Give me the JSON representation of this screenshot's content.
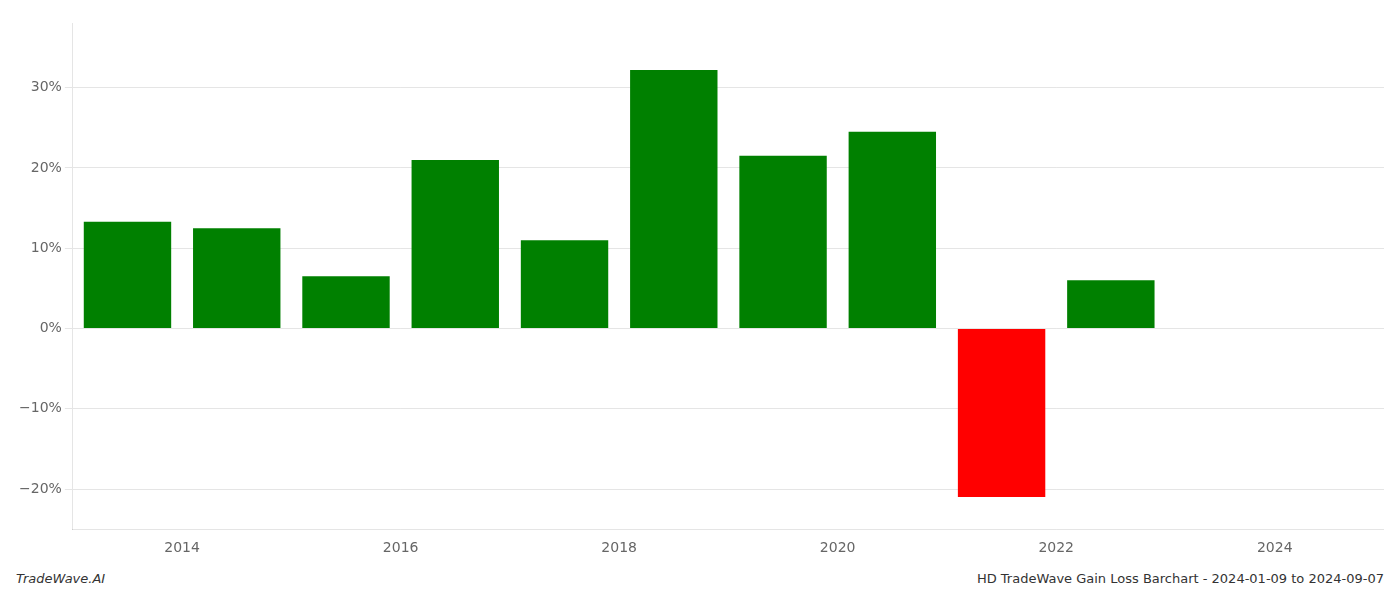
{
  "chart_data": {
    "type": "bar",
    "x": [
      2013.5,
      2014.5,
      2015.5,
      2016.5,
      2017.5,
      2018.5,
      2019.5,
      2020.5,
      2021.5,
      2022.5
    ],
    "values": [
      13.3,
      12.5,
      6.5,
      21.0,
      11.0,
      32.2,
      21.5,
      24.5,
      -21.0,
      6.0
    ],
    "colors": [
      "#008000",
      "#008000",
      "#008000",
      "#008000",
      "#008000",
      "#008000",
      "#008000",
      "#008000",
      "#ff0000",
      "#008000"
    ],
    "xlim": [
      2013,
      2025
    ],
    "xticks": [
      2014,
      2016,
      2018,
      2020,
      2022,
      2024
    ],
    "ylim": [
      -25,
      38
    ],
    "yticks": [
      {
        "value": -20,
        "label": "−20%"
      },
      {
        "value": -10,
        "label": "−10%"
      },
      {
        "value": 0,
        "label": "0%"
      },
      {
        "value": 10,
        "label": "10%"
      },
      {
        "value": 20,
        "label": "20%"
      },
      {
        "value": 30,
        "label": "30%"
      }
    ],
    "grid": true,
    "annotations": [
      "TradeWave.AI",
      "HD TradeWave Gain Loss Barchart - 2024-01-09 to 2024-09-07"
    ]
  }
}
